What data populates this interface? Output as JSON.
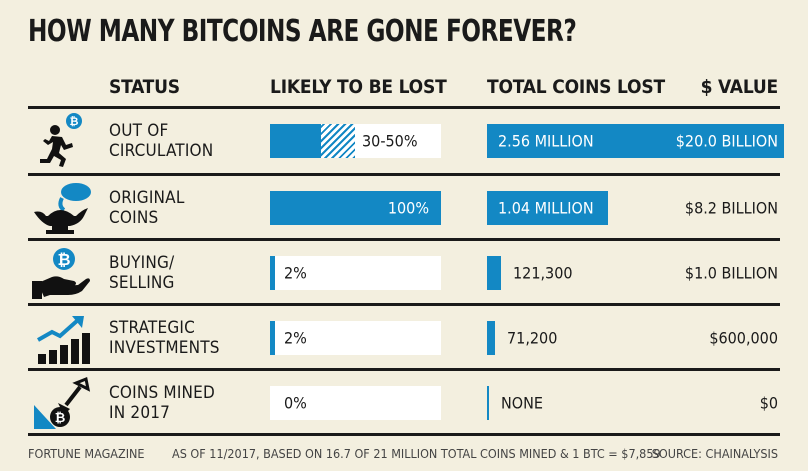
{
  "title": "HOW MANY BITCOINS ARE GONE FOREVER?",
  "headers": {
    "status": "STATUS",
    "likely": "LIKELY TO BE LOST",
    "total": "TOTAL COINS LOST",
    "value": "$ VALUE"
  },
  "colors": {
    "accent": "#1388c4",
    "background": "#f3efdf"
  },
  "rows": [
    {
      "status_lines": [
        "OUT OF",
        "CIRCULATION"
      ],
      "icon": "running-person-bitcoin-icon",
      "likely_text": "30-50%",
      "likely_min": 0.3,
      "likely_max": 0.5,
      "coins_text": "2.56 MILLION",
      "coins_millions": 2.56,
      "value_text": "$20.0 BILLION"
    },
    {
      "status_lines": [
        "ORIGINAL",
        "COINS"
      ],
      "icon": "magic-lamp-icon",
      "likely_text": "100%",
      "likely_min": 1.0,
      "likely_max": 1.0,
      "coins_text": "1.04 MILLION",
      "coins_millions": 1.04,
      "value_text": "$8.2 BILLION"
    },
    {
      "status_lines": [
        "BUYING/",
        "SELLING"
      ],
      "icon": "hand-bitcoin-icon",
      "likely_text": "2%",
      "likely_min": 0.02,
      "likely_max": 0.02,
      "coins_text": "121,300",
      "coins_millions": 0.1213,
      "value_text": "$1.0 BILLION"
    },
    {
      "status_lines": [
        "STRATEGIC",
        "INVESTMENTS"
      ],
      "icon": "growth-chart-icon",
      "likely_text": "2%",
      "likely_min": 0.02,
      "likely_max": 0.02,
      "coins_text": "71,200",
      "coins_millions": 0.0712,
      "value_text": "$600,000"
    },
    {
      "status_lines": [
        "COINS MINED",
        "IN 2017"
      ],
      "icon": "shovel-bitcoin-icon",
      "likely_text": "0%",
      "likely_min": 0.0,
      "likely_max": 0.0,
      "coins_text": "NONE",
      "coins_millions": 0,
      "value_text": "$0"
    }
  ],
  "footer": {
    "source_left": "FORTUNE MAGAZINE",
    "note": "AS OF 11/2017, BASED ON 16.7 OF 21 MILLION TOTAL COINS MINED & 1 BTC = $7,859",
    "source_right": "SOURCE: CHAINALYSIS"
  },
  "chart_data": {
    "type": "bar",
    "title": "HOW MANY BITCOINS ARE GONE FOREVER?",
    "categories": [
      "OUT OF CIRCULATION",
      "ORIGINAL COINS",
      "BUYING/SELLING",
      "STRATEGIC INVESTMENTS",
      "COINS MINED IN 2017"
    ],
    "series": [
      {
        "name": "LIKELY TO BE LOST",
        "values": [
          "30-50%",
          "100%",
          "2%",
          "2%",
          "0%"
        ]
      },
      {
        "name": "TOTAL COINS LOST",
        "values": [
          2560000,
          1040000,
          121300,
          71200,
          0
        ]
      },
      {
        "name": "$ VALUE",
        "values": [
          "$20.0 BILLION",
          "$8.2 BILLION",
          "$1.0 BILLION",
          "$600,000",
          "$0"
        ]
      }
    ]
  }
}
